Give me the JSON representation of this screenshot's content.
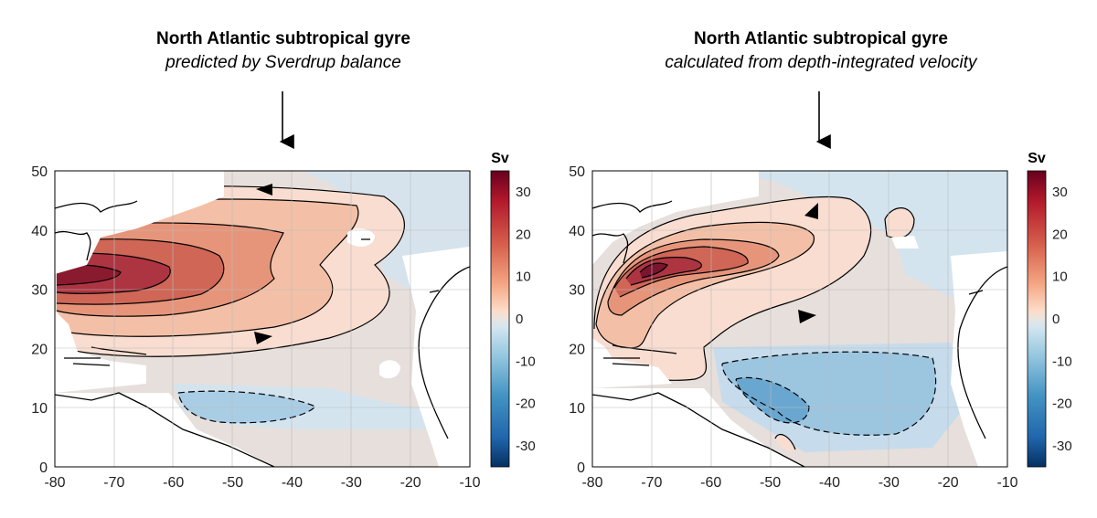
{
  "panels": [
    {
      "title": "North Atlantic subtropical gyre",
      "subtitle": "predicted by Sverdrup balance"
    },
    {
      "title": "North Atlantic subtropical gyre",
      "subtitle": "calculated from depth-integrated velocity"
    }
  ],
  "colorbar": {
    "unit": "Sv",
    "ticks": [
      "30",
      "20",
      "10",
      "0",
      "-10",
      "-20",
      "-30"
    ],
    "range": [
      -35,
      35
    ],
    "colors": [
      "#67001f",
      "#b2182b",
      "#d6604d",
      "#f4a582",
      "#fddbc7",
      "#e6e0dc",
      "#d1e5f0",
      "#92c5de",
      "#4393c3",
      "#2166ac",
      "#053061"
    ]
  },
  "chart_data": [
    {
      "type": "heatmap",
      "title": "North Atlantic subtropical gyre",
      "subtitle": "predicted by Sverdrup balance",
      "xlabel": "",
      "ylabel": "",
      "xlim": [
        -80,
        -10
      ],
      "ylim": [
        0,
        50
      ],
      "xticks": [
        "-80",
        "-70",
        "-60",
        "-50",
        "-40",
        "-30",
        "-20",
        "-10"
      ],
      "yticks": [
        "0",
        "10",
        "20",
        "30",
        "40",
        "50"
      ],
      "colorbar_label": "Sv",
      "colorbar_range": [
        -35,
        35
      ],
      "grid": true,
      "features": [
        {
          "kind": "gyre",
          "sign": "positive",
          "center_lon": -72,
          "center_lat": 32,
          "max_sv": 35
        },
        {
          "kind": "gyre",
          "sign": "negative",
          "center_lon": -55,
          "center_lat": 10,
          "min_sv": -8
        }
      ]
    },
    {
      "type": "heatmap",
      "title": "North Atlantic subtropical gyre",
      "subtitle": "calculated from depth-integrated velocity",
      "xlabel": "",
      "ylabel": "",
      "xlim": [
        -80,
        -10
      ],
      "ylim": [
        0,
        50
      ],
      "xticks": [
        "-80",
        "-70",
        "-60",
        "-50",
        "-40",
        "-30",
        "-20",
        "-10"
      ],
      "yticks": [
        "0",
        "10",
        "20",
        "30",
        "40",
        "50"
      ],
      "colorbar_label": "Sv",
      "colorbar_range": [
        -35,
        35
      ],
      "grid": true,
      "features": [
        {
          "kind": "gyre",
          "sign": "positive",
          "center_lon": -71,
          "center_lat": 33,
          "max_sv": 35
        },
        {
          "kind": "gyre",
          "sign": "negative",
          "center_lon": -45,
          "center_lat": 11,
          "min_sv": -12
        }
      ]
    }
  ]
}
